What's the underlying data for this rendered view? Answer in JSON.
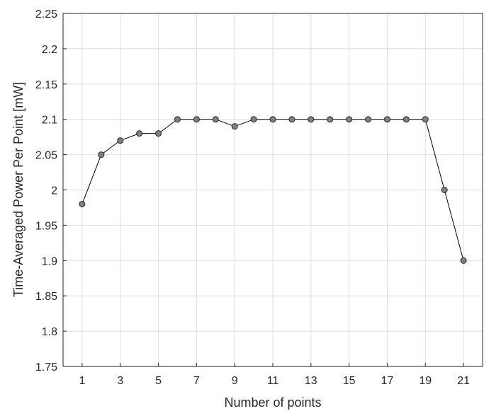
{
  "chart_data": {
    "type": "line",
    "x_label": "Number of points",
    "y_label": "Time-Averaged Power Per Point [mW]",
    "x": [
      1,
      2,
      3,
      4,
      5,
      6,
      7,
      8,
      9,
      10,
      11,
      12,
      13,
      14,
      15,
      16,
      17,
      18,
      19,
      20,
      21
    ],
    "series": [
      {
        "color": "#000000",
        "marker_color": "#808080",
        "values": [
          1.98,
          2.05,
          2.07,
          2.08,
          2.08,
          2.1,
          2.1,
          2.1,
          2.09,
          2.1,
          2.1,
          2.1,
          2.1,
          2.1,
          2.1,
          2.1,
          2.1,
          2.1,
          2.1,
          2.0,
          1.9
        ]
      }
    ],
    "xlim": [
      0,
      22
    ],
    "xticks": [
      1,
      3,
      5,
      7,
      9,
      11,
      13,
      15,
      17,
      19,
      21
    ],
    "ylim": [
      1.75,
      2.25
    ],
    "yticks": [
      1.75,
      1.8,
      1.85,
      1.9,
      1.95,
      2,
      2.05,
      2.1,
      2.15,
      2.2,
      2.25
    ],
    "grid": true
  }
}
